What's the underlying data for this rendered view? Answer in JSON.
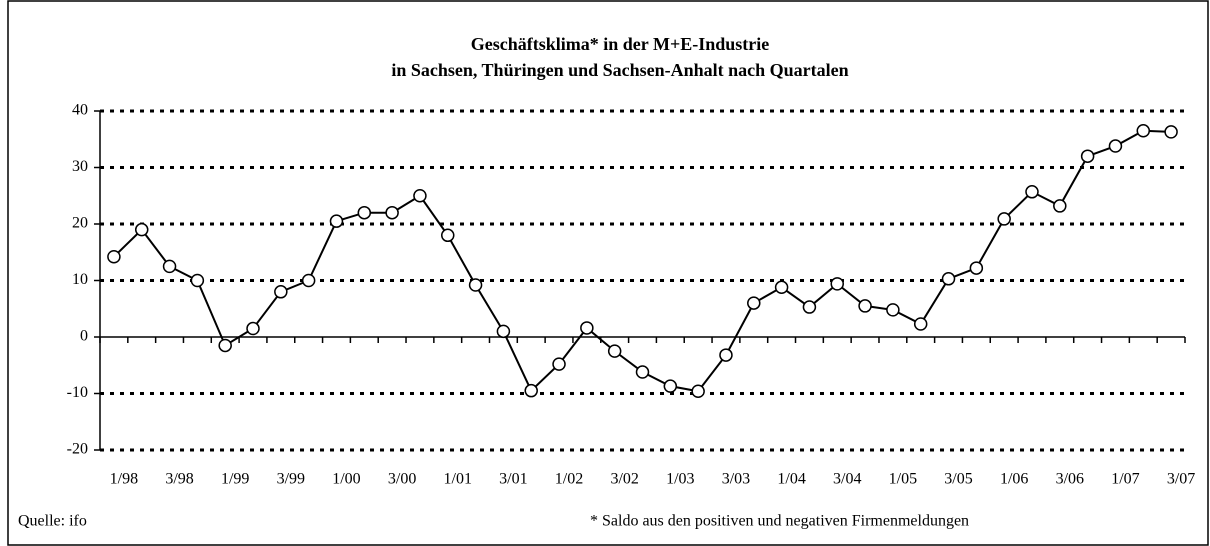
{
  "chart_data": {
    "type": "line",
    "title": "Geschäftsklima* in der M+E-Industrie",
    "subtitle": "in Sachsen, Thüringen und Sachsen-Anhalt nach Quartalen",
    "source": "Quelle: ifo",
    "note": "* Saldo aus den positiven und negativen Firmenmeldungen",
    "categories": [
      "1/98",
      null,
      "3/98",
      null,
      "1/99",
      null,
      "3/99",
      null,
      "1/00",
      null,
      "3/00",
      null,
      "1/01",
      null,
      "3/01",
      null,
      "1/02",
      null,
      "3/02",
      null,
      "1/03",
      null,
      "3/03",
      null,
      "1/04",
      null,
      "3/04",
      null,
      "1/05",
      null,
      "3/05",
      null,
      "1/06",
      null,
      "3/06",
      null,
      "1/07",
      null,
      "3/07"
    ],
    "series": [
      {
        "color": "#000000",
        "values": [
          14.2,
          19,
          12.5,
          10,
          -1.5,
          1.5,
          8,
          10,
          20.5,
          22,
          22,
          25,
          18,
          9.2,
          1,
          -9.5,
          -4.8,
          1.6,
          -2.5,
          -6.2,
          -8.7,
          -9.6,
          -3.2,
          6,
          8.8,
          5.3,
          9.4,
          5.5,
          4.8,
          2.3,
          10.3,
          12.2,
          20.9,
          25.7,
          23.2,
          32,
          33.8,
          36.5,
          36.3
        ]
      }
    ],
    "ylim": [
      -20,
      40
    ],
    "yticks": [
      -20,
      -10,
      0,
      10,
      20,
      30,
      40
    ],
    "grid": true
  }
}
